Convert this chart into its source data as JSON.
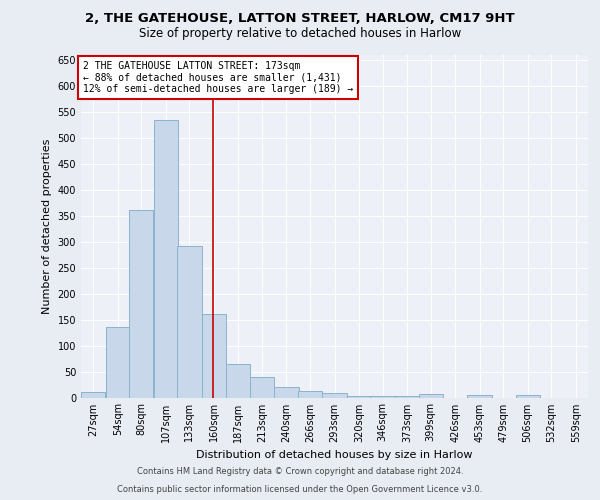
{
  "title1": "2, THE GATEHOUSE, LATTON STREET, HARLOW, CM17 9HT",
  "title2": "Size of property relative to detached houses in Harlow",
  "xlabel": "Distribution of detached houses by size in Harlow",
  "ylabel": "Number of detached properties",
  "bin_labels": [
    "27sqm",
    "54sqm",
    "80sqm",
    "107sqm",
    "133sqm",
    "160sqm",
    "187sqm",
    "213sqm",
    "240sqm",
    "266sqm",
    "293sqm",
    "320sqm",
    "346sqm",
    "373sqm",
    "399sqm",
    "426sqm",
    "453sqm",
    "479sqm",
    "506sqm",
    "532sqm",
    "559sqm"
  ],
  "bin_edges": [
    27,
    54,
    80,
    107,
    133,
    160,
    187,
    213,
    240,
    266,
    293,
    320,
    346,
    373,
    399,
    426,
    453,
    479,
    506,
    532,
    559
  ],
  "bar_heights": [
    10,
    135,
    362,
    535,
    292,
    160,
    65,
    40,
    20,
    13,
    8,
    3,
    3,
    3,
    6,
    0,
    5,
    0,
    5,
    0,
    0
  ],
  "bar_color": "#c8d8ea",
  "bar_edge_color": "#8ab4cc",
  "property_size": 173,
  "red_line_color": "#cc0000",
  "annotation_line1": "2 THE GATEHOUSE LATTON STREET: 173sqm",
  "annotation_line2": "← 88% of detached houses are smaller (1,431)",
  "annotation_line3": "12% of semi-detached houses are larger (189) →",
  "annotation_box_color": "white",
  "annotation_box_edge_color": "#cc0000",
  "ylim": [
    0,
    660
  ],
  "yticks": [
    0,
    50,
    100,
    150,
    200,
    250,
    300,
    350,
    400,
    450,
    500,
    550,
    600,
    650
  ],
  "footer1": "Contains HM Land Registry data © Crown copyright and database right 2024.",
  "footer2": "Contains public sector information licensed under the Open Government Licence v3.0.",
  "bg_color": "#e8edf3",
  "plot_bg_color": "#edf1f7",
  "grid_color": "#ffffff",
  "title1_fontsize": 9.5,
  "title2_fontsize": 8.5,
  "ylabel_fontsize": 8,
  "xlabel_fontsize": 8,
  "tick_fontsize": 7,
  "annotation_fontsize": 7,
  "footer_fontsize": 6
}
